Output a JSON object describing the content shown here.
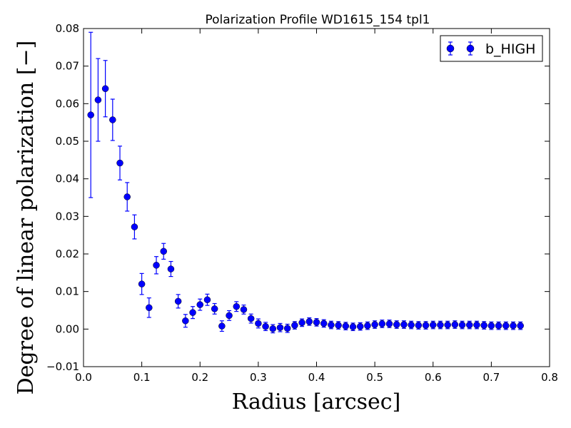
{
  "chart_data": {
    "type": "scatter",
    "title": "Polarization Profile WD1615_154 tpl1",
    "xlabel": "Radius [arcsec]",
    "ylabel": "Degree of linear polarization [−]",
    "xlim": [
      0.0,
      0.8
    ],
    "ylim": [
      -0.01,
      0.08
    ],
    "x_ticks": [
      "0.0",
      "0.1",
      "0.2",
      "0.3",
      "0.4",
      "0.5",
      "0.6",
      "0.7",
      "0.8"
    ],
    "y_ticks": [
      "−0.01",
      "0.00",
      "0.01",
      "0.02",
      "0.03",
      "0.04",
      "0.05",
      "0.06",
      "0.07",
      "0.08"
    ],
    "grid": false,
    "legend_position": "top-right",
    "colors": {
      "series": "#0000ff"
    },
    "series": [
      {
        "name": "b_HIGH",
        "x": [
          0.0125,
          0.025,
          0.0375,
          0.05,
          0.0625,
          0.075,
          0.0875,
          0.1,
          0.1125,
          0.125,
          0.1375,
          0.15,
          0.1625,
          0.175,
          0.1875,
          0.2,
          0.2125,
          0.225,
          0.2375,
          0.25,
          0.2625,
          0.275,
          0.2875,
          0.3,
          0.3125,
          0.325,
          0.3375,
          0.35,
          0.3625,
          0.375,
          0.3875,
          0.4,
          0.4125,
          0.425,
          0.4375,
          0.45,
          0.4625,
          0.475,
          0.4875,
          0.5,
          0.5125,
          0.525,
          0.5375,
          0.55,
          0.5625,
          0.575,
          0.5875,
          0.6,
          0.6125,
          0.625,
          0.6375,
          0.65,
          0.6625,
          0.675,
          0.6875,
          0.7,
          0.7125,
          0.725,
          0.7375,
          0.75
        ],
        "y": [
          0.057,
          0.061,
          0.064,
          0.0557,
          0.0442,
          0.0352,
          0.0272,
          0.012,
          0.0057,
          0.017,
          0.0207,
          0.016,
          0.0074,
          0.0022,
          0.0044,
          0.0065,
          0.0078,
          0.0054,
          0.0008,
          0.0036,
          0.006,
          0.0052,
          0.0028,
          0.0015,
          0.0007,
          0.0001,
          0.0004,
          0.0002,
          0.001,
          0.0017,
          0.002,
          0.0018,
          0.0015,
          0.0011,
          0.001,
          0.0008,
          0.0006,
          0.0007,
          0.0009,
          0.0012,
          0.0014,
          0.0014,
          0.0012,
          0.0012,
          0.0011,
          0.001,
          0.001,
          0.0011,
          0.0011,
          0.0011,
          0.0012,
          0.0011,
          0.0011,
          0.0011,
          0.001,
          0.0009,
          0.0009,
          0.0009,
          0.0009,
          0.0009
        ],
        "err": [
          0.022,
          0.011,
          0.0075,
          0.0055,
          0.0045,
          0.0038,
          0.0032,
          0.0028,
          0.0026,
          0.0023,
          0.0021,
          0.002,
          0.0018,
          0.0017,
          0.0016,
          0.0015,
          0.0015,
          0.0014,
          0.0014,
          0.0013,
          0.0013,
          0.0012,
          0.0012,
          0.0012,
          0.0011,
          0.0011,
          0.0011,
          0.0011,
          0.001,
          0.001,
          0.001,
          0.001,
          0.001,
          0.001,
          0.001,
          0.001,
          0.001,
          0.001,
          0.001,
          0.001,
          0.001,
          0.001,
          0.001,
          0.001,
          0.001,
          0.001,
          0.001,
          0.001,
          0.001,
          0.001,
          0.001,
          0.001,
          0.001,
          0.001,
          0.001,
          0.001,
          0.001,
          0.001,
          0.001,
          0.001
        ]
      }
    ]
  }
}
